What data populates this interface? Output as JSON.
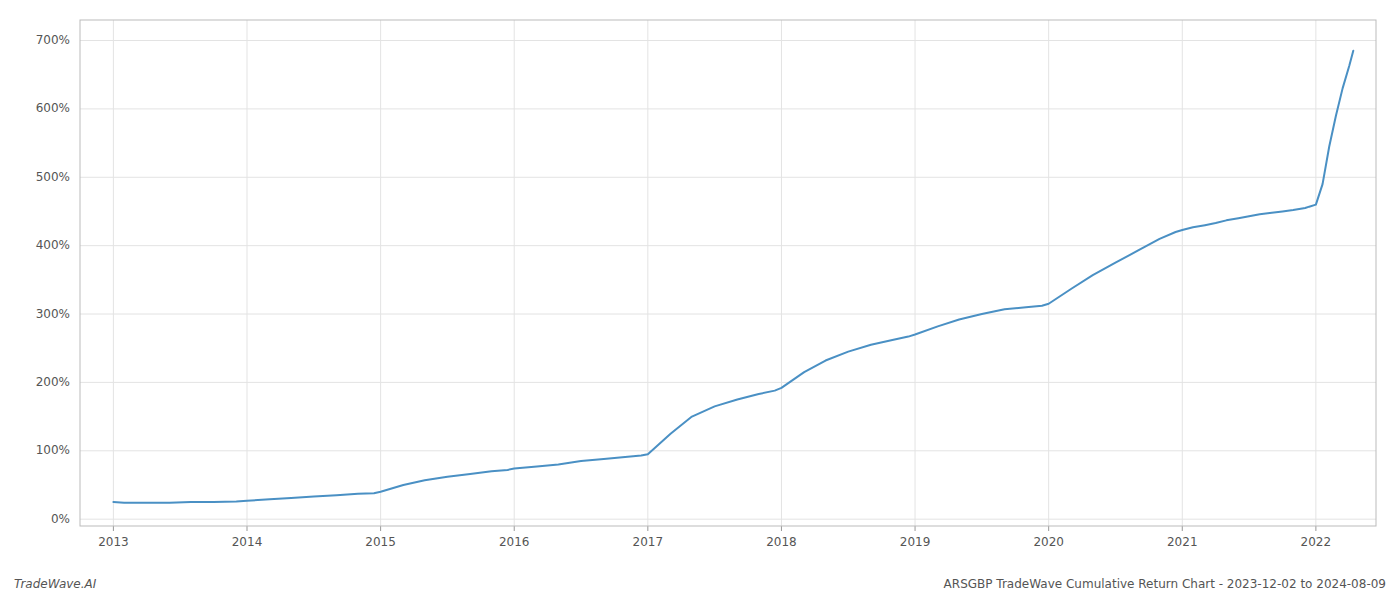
{
  "chart_data": {
    "type": "line",
    "title": "ARSGBP TradeWave Cumulative Return Chart - 2023-12-02 to 2024-08-09",
    "annotations": [
      "TradeWave.AI"
    ],
    "color": "#4a90c4",
    "grid": true,
    "xlim": [
      2012.75,
      2022.45
    ],
    "ylim": [
      -10,
      730
    ],
    "xticks": [
      2013,
      2014,
      2015,
      2016,
      2017,
      2018,
      2019,
      2020,
      2021,
      2022
    ],
    "yticks": [
      {
        "value": 0,
        "label": "0%"
      },
      {
        "value": 100,
        "label": "100%"
      },
      {
        "value": 200,
        "label": "200%"
      },
      {
        "value": 300,
        "label": "300%"
      },
      {
        "value": 400,
        "label": "400%"
      },
      {
        "value": 500,
        "label": "500%"
      },
      {
        "value": 600,
        "label": "600%"
      },
      {
        "value": 700,
        "label": "700%"
      }
    ],
    "x": [
      2013.0,
      2013.08,
      2013.17,
      2013.25,
      2013.42,
      2013.58,
      2013.75,
      2013.92,
      2014.0,
      2014.17,
      2014.33,
      2014.5,
      2014.67,
      2014.83,
      2014.95,
      2015.0,
      2015.17,
      2015.33,
      2015.5,
      2015.67,
      2015.83,
      2015.95,
      2016.0,
      2016.17,
      2016.33,
      2016.5,
      2016.67,
      2016.83,
      2016.95,
      2017.0,
      2017.17,
      2017.33,
      2017.5,
      2017.67,
      2017.83,
      2017.95,
      2018.0,
      2018.17,
      2018.33,
      2018.5,
      2018.67,
      2018.83,
      2018.95,
      2019.0,
      2019.17,
      2019.33,
      2019.5,
      2019.67,
      2019.83,
      2019.95,
      2020.0,
      2020.17,
      2020.33,
      2020.5,
      2020.67,
      2020.83,
      2020.95,
      2021.0,
      2021.08,
      2021.17,
      2021.25,
      2021.33,
      2021.42,
      2021.5,
      2021.58,
      2021.67,
      2021.75,
      2021.83,
      2021.92,
      2021.95,
      2022.0,
      2022.05,
      2022.1,
      2022.15,
      2022.2,
      2022.25,
      2022.28
    ],
    "values": [
      25,
      24,
      24,
      24,
      24,
      25,
      25,
      26,
      27,
      29,
      31,
      33,
      35,
      37,
      38,
      40,
      50,
      57,
      62,
      66,
      70,
      72,
      74,
      77,
      80,
      85,
      88,
      91,
      93,
      95,
      125,
      150,
      165,
      175,
      183,
      188,
      192,
      215,
      232,
      245,
      255,
      262,
      267,
      270,
      282,
      292,
      300,
      307,
      310,
      312,
      315,
      337,
      357,
      375,
      393,
      410,
      420,
      423,
      427,
      430,
      433,
      437,
      440,
      443,
      446,
      448,
      450,
      452,
      455,
      457,
      460,
      490,
      545,
      590,
      630,
      663,
      685
    ]
  }
}
